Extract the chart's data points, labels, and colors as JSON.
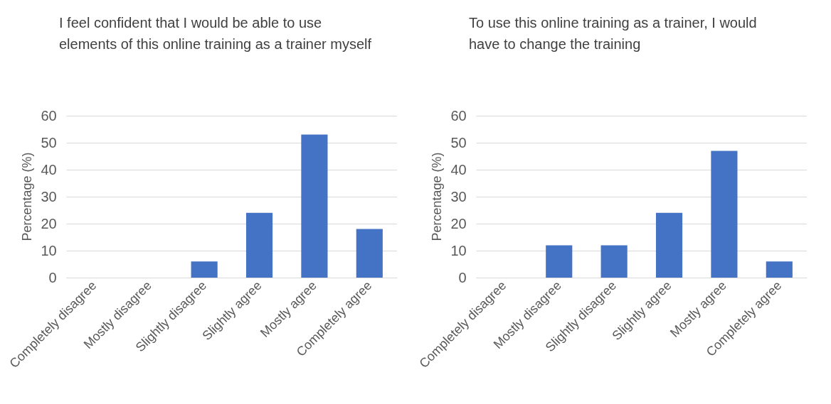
{
  "chart_data": [
    {
      "type": "bar",
      "title": "I feel confident that I would be able to use elements of this online training as a trainer myself",
      "ylabel": "Percentage (%)",
      "categories": [
        "Completely disagree",
        "Mostly disagree",
        "Slightly disagree",
        "Slightly agree",
        "Mostly agree",
        "Completely agree"
      ],
      "values": [
        0,
        0,
        6,
        24,
        53,
        18
      ],
      "color": "#4472c4",
      "ylim": [
        0,
        60
      ],
      "yticks": [
        0,
        10,
        20,
        30,
        40,
        50,
        60
      ],
      "grid": "y"
    },
    {
      "type": "bar",
      "title": "To use this online training as a trainer, I would have to change the training",
      "ylabel": "Percentage (%)",
      "categories": [
        "Completely disagree",
        "Mostly disagree",
        "Slightly disagree",
        "Slightly agree",
        "Mostly agree",
        "Completely agree"
      ],
      "values": [
        0,
        12,
        12,
        24,
        47,
        6
      ],
      "color": "#4472c4",
      "ylim": [
        0,
        60
      ],
      "yticks": [
        0,
        10,
        20,
        30,
        40,
        50,
        60
      ],
      "grid": "y"
    }
  ]
}
